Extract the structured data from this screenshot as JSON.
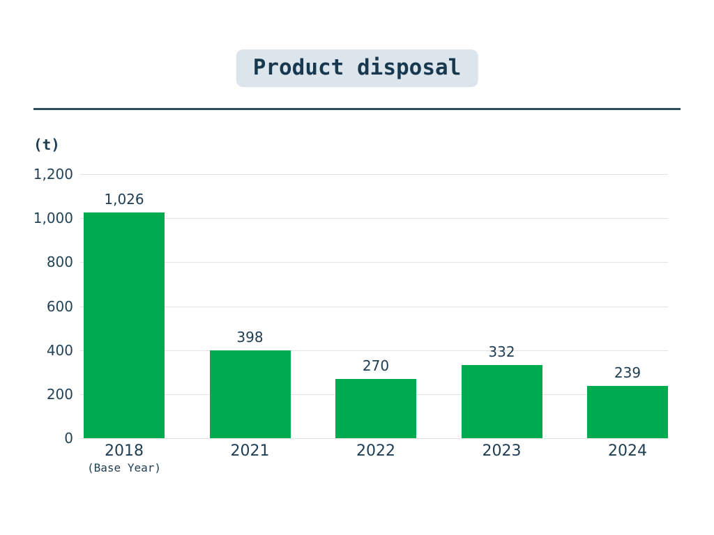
{
  "title": "Product disposal",
  "colors": {
    "bar_green": "#00ab4f",
    "text_navy": "#1e3d53",
    "title_badge_bg": "#dce4ec",
    "divider_navy": "#2e4b5d",
    "gridline_gray": "#e2e2e2",
    "background": "#ffffff"
  },
  "chart_data": {
    "type": "bar",
    "title": "Product disposal",
    "unit_label": "(t)",
    "categories": [
      "2018",
      "2021",
      "2022",
      "2023",
      "2024"
    ],
    "category_sublabels": [
      "(Base Year)",
      "",
      "",
      "",
      ""
    ],
    "values": [
      1026,
      398,
      270,
      332,
      239
    ],
    "value_labels": [
      "1,026",
      "398",
      "270",
      "332",
      "239"
    ],
    "y_ticks": [
      0,
      200,
      400,
      600,
      800,
      1000,
      1200
    ],
    "y_tick_labels": [
      "0",
      "200",
      "400",
      "600",
      "800",
      "1,000",
      "1,200"
    ],
    "ylim": [
      0,
      1200
    ],
    "grid": true,
    "legend": "none",
    "bar_color": "#00ab4f"
  }
}
